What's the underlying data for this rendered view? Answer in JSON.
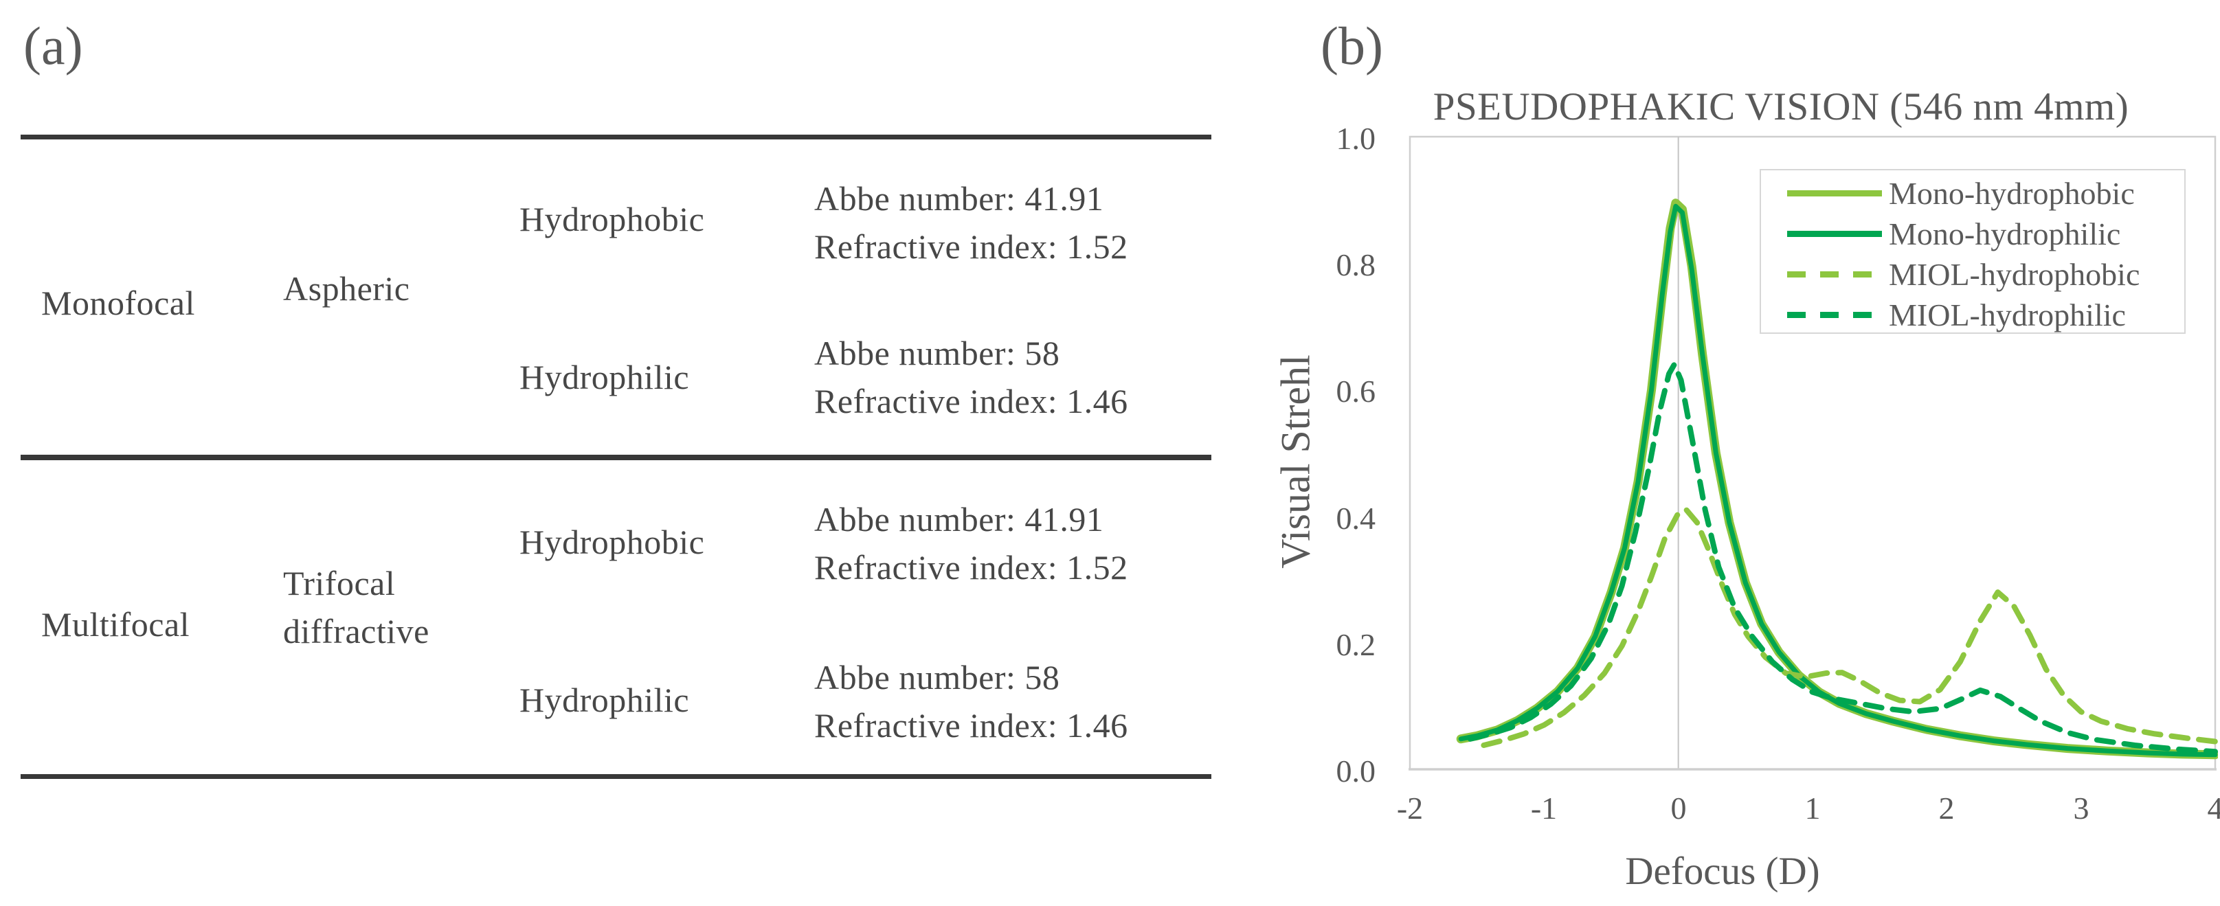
{
  "panels": {
    "a_label": "(a)",
    "b_label": "(b)"
  },
  "table": {
    "rows": [
      {
        "focal": "Monofocal",
        "design_line1": "Aspheric",
        "design_line2": "",
        "materials": [
          {
            "name": "Hydrophobic",
            "abbe": "Abbe number: 41.91",
            "refractive": "Refractive index: 1.52"
          },
          {
            "name": "Hydrophilic",
            "abbe": "Abbe number: 58",
            "refractive": "Refractive index: 1.46"
          }
        ]
      },
      {
        "focal": "Multifocal",
        "design_line1": "Trifocal",
        "design_line2": "diffractive",
        "materials": [
          {
            "name": "Hydrophobic",
            "abbe": "Abbe number: 41.91",
            "refractive": "Refractive index: 1.52"
          },
          {
            "name": "Hydrophilic",
            "abbe": "Abbe number: 58",
            "refractive": "Refractive index: 1.46"
          }
        ]
      }
    ]
  },
  "chart_data": {
    "type": "line",
    "title": "PSEUDOPHAKIC VISION (546 nm 4mm)",
    "xlabel": "Defocus (D)",
    "ylabel": "Visual Strehl",
    "xlim": [
      -2,
      4
    ],
    "ylim": [
      0.0,
      1.0
    ],
    "xticks": [
      "-2",
      "-1",
      "0",
      "1",
      "2",
      "3",
      "4"
    ],
    "yticks": [
      "0.0",
      "0.2",
      "0.4",
      "0.6",
      "0.8",
      "1.0"
    ],
    "grid": "single vertical gridline at x=0",
    "legend_position": "top-right inside plot",
    "plot_border_color": "#cfcfcf",
    "gridline_color": "#c4c4c4",
    "series": [
      {
        "name": "Mono-hydrophobic",
        "color": "#8dc63f",
        "style": "solid",
        "points": [
          [
            -1.62,
            0.048
          ],
          [
            -1.5,
            0.053
          ],
          [
            -1.35,
            0.062
          ],
          [
            -1.2,
            0.077
          ],
          [
            -1.05,
            0.097
          ],
          [
            -0.9,
            0.123
          ],
          [
            -0.75,
            0.16
          ],
          [
            -0.62,
            0.21
          ],
          [
            -0.5,
            0.28
          ],
          [
            -0.4,
            0.35
          ],
          [
            -0.3,
            0.455
          ],
          [
            -0.2,
            0.6
          ],
          [
            -0.12,
            0.75
          ],
          [
            -0.06,
            0.855
          ],
          [
            -0.02,
            0.895
          ],
          [
            0.03,
            0.885
          ],
          [
            0.1,
            0.795
          ],
          [
            0.18,
            0.655
          ],
          [
            0.28,
            0.5
          ],
          [
            0.38,
            0.39
          ],
          [
            0.5,
            0.295
          ],
          [
            0.62,
            0.23
          ],
          [
            0.75,
            0.185
          ],
          [
            0.9,
            0.148
          ],
          [
            1.05,
            0.122
          ],
          [
            1.2,
            0.104
          ],
          [
            1.4,
            0.088
          ],
          [
            1.6,
            0.076
          ],
          [
            1.85,
            0.063
          ],
          [
            2.1,
            0.053
          ],
          [
            2.35,
            0.045
          ],
          [
            2.6,
            0.039
          ],
          [
            2.9,
            0.033
          ],
          [
            3.2,
            0.029
          ],
          [
            3.5,
            0.026
          ],
          [
            3.75,
            0.024
          ],
          [
            4.0,
            0.023
          ]
        ]
      },
      {
        "name": "Mono-hydrophilic",
        "color": "#00a651",
        "style": "solid",
        "points": [
          [
            -1.62,
            0.048
          ],
          [
            -1.5,
            0.053
          ],
          [
            -1.35,
            0.062
          ],
          [
            -1.2,
            0.077
          ],
          [
            -1.05,
            0.097
          ],
          [
            -0.9,
            0.123
          ],
          [
            -0.75,
            0.16
          ],
          [
            -0.62,
            0.21
          ],
          [
            -0.5,
            0.28
          ],
          [
            -0.4,
            0.35
          ],
          [
            -0.3,
            0.455
          ],
          [
            -0.2,
            0.6
          ],
          [
            -0.12,
            0.75
          ],
          [
            -0.06,
            0.85
          ],
          [
            -0.02,
            0.89
          ],
          [
            0.03,
            0.88
          ],
          [
            0.1,
            0.79
          ],
          [
            0.18,
            0.655
          ],
          [
            0.28,
            0.5
          ],
          [
            0.38,
            0.39
          ],
          [
            0.5,
            0.295
          ],
          [
            0.62,
            0.23
          ],
          [
            0.75,
            0.185
          ],
          [
            0.9,
            0.148
          ],
          [
            1.05,
            0.122
          ],
          [
            1.2,
            0.104
          ],
          [
            1.4,
            0.088
          ],
          [
            1.6,
            0.076
          ],
          [
            1.85,
            0.063
          ],
          [
            2.1,
            0.053
          ],
          [
            2.35,
            0.045
          ],
          [
            2.6,
            0.039
          ],
          [
            2.9,
            0.033
          ],
          [
            3.2,
            0.029
          ],
          [
            3.5,
            0.026
          ],
          [
            3.75,
            0.024
          ],
          [
            4.0,
            0.023
          ]
        ]
      },
      {
        "name": "MIOL-hydrophobic",
        "color": "#8dc63f",
        "style": "dashed",
        "points": [
          [
            -1.45,
            0.038
          ],
          [
            -1.3,
            0.046
          ],
          [
            -1.15,
            0.056
          ],
          [
            -1.0,
            0.07
          ],
          [
            -0.85,
            0.09
          ],
          [
            -0.7,
            0.117
          ],
          [
            -0.55,
            0.152
          ],
          [
            -0.42,
            0.195
          ],
          [
            -0.3,
            0.25
          ],
          [
            -0.2,
            0.305
          ],
          [
            -0.1,
            0.365
          ],
          [
            0.0,
            0.405
          ],
          [
            0.06,
            0.41
          ],
          [
            0.14,
            0.39
          ],
          [
            0.22,
            0.35
          ],
          [
            0.32,
            0.295
          ],
          [
            0.42,
            0.245
          ],
          [
            0.52,
            0.21
          ],
          [
            0.65,
            0.177
          ],
          [
            0.8,
            0.152
          ],
          [
            0.95,
            0.146
          ],
          [
            1.1,
            0.152
          ],
          [
            1.22,
            0.153
          ],
          [
            1.35,
            0.14
          ],
          [
            1.5,
            0.121
          ],
          [
            1.65,
            0.109
          ],
          [
            1.8,
            0.107
          ],
          [
            1.95,
            0.126
          ],
          [
            2.1,
            0.17
          ],
          [
            2.25,
            0.235
          ],
          [
            2.38,
            0.28
          ],
          [
            2.5,
            0.258
          ],
          [
            2.62,
            0.212
          ],
          [
            2.74,
            0.158
          ],
          [
            2.87,
            0.117
          ],
          [
            3.0,
            0.091
          ],
          [
            3.15,
            0.076
          ],
          [
            3.35,
            0.064
          ],
          [
            3.55,
            0.056
          ],
          [
            3.8,
            0.049
          ],
          [
            4.0,
            0.044
          ]
        ]
      },
      {
        "name": "MIOL-hydrophilic",
        "color": "#00a651",
        "style": "dashed",
        "points": [
          [
            -1.55,
            0.048
          ],
          [
            -1.4,
            0.056
          ],
          [
            -1.25,
            0.066
          ],
          [
            -1.1,
            0.082
          ],
          [
            -0.95,
            0.103
          ],
          [
            -0.8,
            0.132
          ],
          [
            -0.65,
            0.175
          ],
          [
            -0.52,
            0.23
          ],
          [
            -0.42,
            0.29
          ],
          [
            -0.32,
            0.375
          ],
          [
            -0.22,
            0.475
          ],
          [
            -0.14,
            0.565
          ],
          [
            -0.07,
            0.625
          ],
          [
            -0.03,
            0.64
          ],
          [
            0.02,
            0.615
          ],
          [
            0.1,
            0.525
          ],
          [
            0.2,
            0.41
          ],
          [
            0.3,
            0.32
          ],
          [
            0.42,
            0.255
          ],
          [
            0.55,
            0.21
          ],
          [
            0.7,
            0.17
          ],
          [
            0.85,
            0.142
          ],
          [
            1.0,
            0.122
          ],
          [
            1.15,
            0.112
          ],
          [
            1.35,
            0.104
          ],
          [
            1.55,
            0.096
          ],
          [
            1.75,
            0.091
          ],
          [
            1.95,
            0.096
          ],
          [
            2.1,
            0.11
          ],
          [
            2.25,
            0.125
          ],
          [
            2.4,
            0.115
          ],
          [
            2.55,
            0.095
          ],
          [
            2.7,
            0.076
          ],
          [
            2.9,
            0.058
          ],
          [
            3.1,
            0.047
          ],
          [
            3.4,
            0.038
          ],
          [
            3.7,
            0.032
          ],
          [
            4.0,
            0.028
          ]
        ]
      }
    ]
  }
}
